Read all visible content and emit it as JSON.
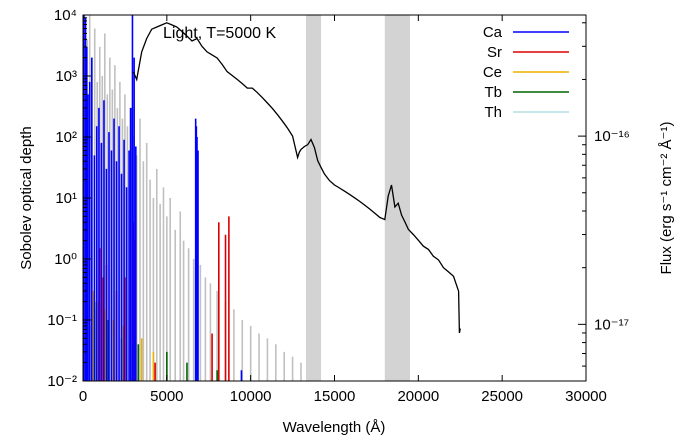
{
  "chart_data": {
    "type": "line",
    "title": "Light, T=5000 K",
    "xlabel": "Wavelength (Å)",
    "ylabel": "Sobolev optical depth",
    "y2label": "Flux (erg s⁻¹ cm⁻² Å⁻¹)",
    "xlim": [
      0,
      30000
    ],
    "ylim": [
      0.01,
      10000
    ],
    "y2lim": [
      5e-18,
      4.4e-16
    ],
    "yscale": "log",
    "y2scale": "log",
    "x_ticks": [
      0,
      5000,
      10000,
      15000,
      20000,
      25000,
      30000
    ],
    "x_tick_labels": [
      "0",
      "5000",
      "10000",
      "15000",
      "20000",
      "25000",
      "30000"
    ],
    "y_ticks": [
      0.01,
      0.1,
      1,
      10,
      100,
      1000,
      10000
    ],
    "y_tick_labels": [
      "10⁻²",
      "10⁻¹",
      "10⁰",
      "10¹",
      "10²",
      "10³",
      "10⁴"
    ],
    "y2_ticks": [
      1e-17,
      1e-16
    ],
    "y2_tick_labels": [
      "10⁻¹⁷",
      "10⁻¹⁶"
    ],
    "grid": false,
    "legend_position": "top-right",
    "shaded_bands": [
      {
        "x0": 13300,
        "x1": 14200
      },
      {
        "x0": 18000,
        "x1": 19500
      }
    ],
    "series": [
      {
        "name": "Ca",
        "color": "#0000ff",
        "lines": [
          [
            50,
            10000
          ],
          [
            150,
            9000
          ],
          [
            220,
            3000
          ],
          [
            300,
            500
          ],
          [
            400,
            800
          ],
          [
            520,
            2000
          ],
          [
            680,
            50
          ],
          [
            820,
            150
          ],
          [
            950,
            300
          ],
          [
            1100,
            80
          ],
          [
            1250,
            400
          ],
          [
            1400,
            30
          ],
          [
            1550,
            120
          ],
          [
            1700,
            60
          ],
          [
            1850,
            200
          ],
          [
            2000,
            40
          ],
          [
            2150,
            150
          ],
          [
            2300,
            25
          ],
          [
            2450,
            90
          ],
          [
            2600,
            15
          ],
          [
            2750,
            60
          ],
          [
            2850,
            300
          ],
          [
            2950,
            10000
          ],
          [
            3050,
            2000
          ],
          [
            3150,
            70
          ],
          [
            6720,
            200
          ],
          [
            6760,
            150
          ],
          [
            6800,
            100
          ],
          [
            6860,
            60
          ],
          [
            9450,
            0.015
          ]
        ]
      },
      {
        "name": "Sr",
        "color": "#dd0000",
        "lines": [
          [
            1000,
            1.5
          ],
          [
            1200,
            0.5
          ],
          [
            1400,
            0.8
          ],
          [
            2000,
            0.3
          ],
          [
            2500,
            0.5
          ],
          [
            3000,
            4.0
          ],
          [
            3100,
            2.0
          ],
          [
            4300,
            0.02
          ],
          [
            7700,
            0.06
          ],
          [
            8100,
            4.0
          ],
          [
            8500,
            2.5
          ],
          [
            8700,
            5.0
          ]
        ]
      },
      {
        "name": "Ce",
        "color": "#f0b000",
        "lines": [
          [
            600,
            0.3
          ],
          [
            900,
            0.2
          ],
          [
            1300,
            0.15
          ],
          [
            1800,
            0.1
          ],
          [
            2400,
            0.08
          ],
          [
            3000,
            0.06
          ],
          [
            3500,
            0.05
          ],
          [
            4200,
            0.03
          ]
        ]
      },
      {
        "name": "Tb",
        "color": "#006400",
        "lines": [
          [
            700,
            0.2
          ],
          [
            1500,
            0.1
          ],
          [
            2300,
            0.05
          ],
          [
            3300,
            0.04
          ],
          [
            5000,
            0.03
          ],
          [
            6200,
            0.02
          ],
          [
            8000,
            0.015
          ]
        ]
      },
      {
        "name": "Th",
        "color": "#b0e0e6",
        "lines": [
          [
            200,
            0.5
          ],
          [
            500,
            0.08
          ],
          [
            800,
            0.15
          ],
          [
            1100,
            0.06
          ],
          [
            1400,
            0.1
          ],
          [
            1700,
            0.05
          ],
          [
            2000,
            0.08
          ],
          [
            2400,
            0.04
          ],
          [
            2800,
            0.03
          ]
        ]
      },
      {
        "name": "",
        "color": "#c0c0c0",
        "lines": [
          [
            100,
            10000
          ],
          [
            250,
            4000
          ],
          [
            400,
            10000
          ],
          [
            550,
            2000
          ],
          [
            700,
            6000
          ],
          [
            850,
            800
          ],
          [
            1000,
            3000
          ],
          [
            1150,
            1000
          ],
          [
            1300,
            5000
          ],
          [
            1450,
            500
          ],
          [
            1600,
            2000
          ],
          [
            1750,
            600
          ],
          [
            1900,
            1500
          ],
          [
            2050,
            300
          ],
          [
            2200,
            800
          ],
          [
            2350,
            200
          ],
          [
            2500,
            500
          ],
          [
            2650,
            150
          ],
          [
            2800,
            300
          ],
          [
            3000,
            100
          ],
          [
            3200,
            50
          ],
          [
            3400,
            200
          ],
          [
            3600,
            40
          ],
          [
            3800,
            80
          ],
          [
            4000,
            20
          ],
          [
            4200,
            10
          ],
          [
            4400,
            30
          ],
          [
            4600,
            8
          ],
          [
            4800,
            15
          ],
          [
            5000,
            5
          ],
          [
            5200,
            10
          ],
          [
            5500,
            3
          ],
          [
            5800,
            6
          ],
          [
            6000,
            2
          ],
          [
            6300,
            1.5
          ],
          [
            6600,
            1
          ],
          [
            7000,
            0.8
          ],
          [
            7300,
            0.5
          ],
          [
            7600,
            0.4
          ],
          [
            8000,
            0.3
          ],
          [
            8500,
            0.2
          ],
          [
            9000,
            0.15
          ],
          [
            9500,
            0.1
          ],
          [
            10000,
            0.08
          ],
          [
            10500,
            0.06
          ],
          [
            11000,
            0.05
          ],
          [
            11500,
            0.04
          ],
          [
            12000,
            0.03
          ],
          [
            12500,
            0.025
          ],
          [
            13000,
            0.02
          ]
        ]
      },
      {
        "name": "",
        "color": "#000000",
        "axis": "y2",
        "x": [
          3000,
          3200,
          3500,
          3800,
          4100,
          4400,
          4700,
          5000,
          5300,
          5600,
          5900,
          6200,
          6500,
          6800,
          7100,
          7400,
          7700,
          8000,
          8300,
          8600,
          8900,
          9200,
          9500,
          9800,
          10100,
          10400,
          10700,
          11000,
          11300,
          11600,
          11900,
          12200,
          12500,
          12800,
          12900,
          13000,
          13200,
          13400,
          13600,
          13800,
          14000,
          14200,
          14400,
          14700,
          15000,
          15300,
          15600,
          15900,
          16200,
          16500,
          16800,
          17100,
          17400,
          17700,
          18000,
          18200,
          18400,
          18600,
          18800,
          19000,
          19200,
          19400,
          19700,
          20000,
          20300,
          20600,
          20900,
          21200,
          21500,
          21800,
          22100,
          22400,
          22450,
          22500
        ],
        "y": [
          2.2e-16,
          2e-16,
          2.8e-16,
          3.3e-16,
          3.7e-16,
          3.8e-16,
          3.9e-16,
          4e-16,
          3.9e-16,
          3.8e-16,
          3.6e-16,
          3.4e-16,
          3.2e-16,
          3.3e-16,
          3e-16,
          2.8e-16,
          2.7e-16,
          2.6e-16,
          2.4e-16,
          2.2e-16,
          2.1e-16,
          2e-16,
          1.9e-16,
          1.8e-16,
          1.8e-16,
          1.7e-16,
          1.6e-16,
          1.5e-16,
          1.4e-16,
          1.3e-16,
          1.2e-16,
          1.1e-16,
          1e-16,
          7.7e-17,
          8.2e-17,
          8.5e-17,
          8.8e-17,
          9e-17,
          9.6e-17,
          8.7e-17,
          7.4e-17,
          6.8e-17,
          6.3e-17,
          5.8e-17,
          5.5e-17,
          5.3e-17,
          5.1e-17,
          4.9e-17,
          4.7e-17,
          4.5e-17,
          4.3e-17,
          4.1e-17,
          3.9e-17,
          3.7e-17,
          3.6e-17,
          4.8e-17,
          5.5e-17,
          4.2e-17,
          4.4e-17,
          3.8e-17,
          3.5e-17,
          3.2e-17,
          3e-17,
          2.8e-17,
          2.6e-17,
          2.5e-17,
          2.3e-17,
          2.2e-17,
          2e-17,
          1.9e-17,
          1.8e-17,
          1.5e-17,
          9e-18,
          9.5e-18
        ]
      }
    ]
  }
}
